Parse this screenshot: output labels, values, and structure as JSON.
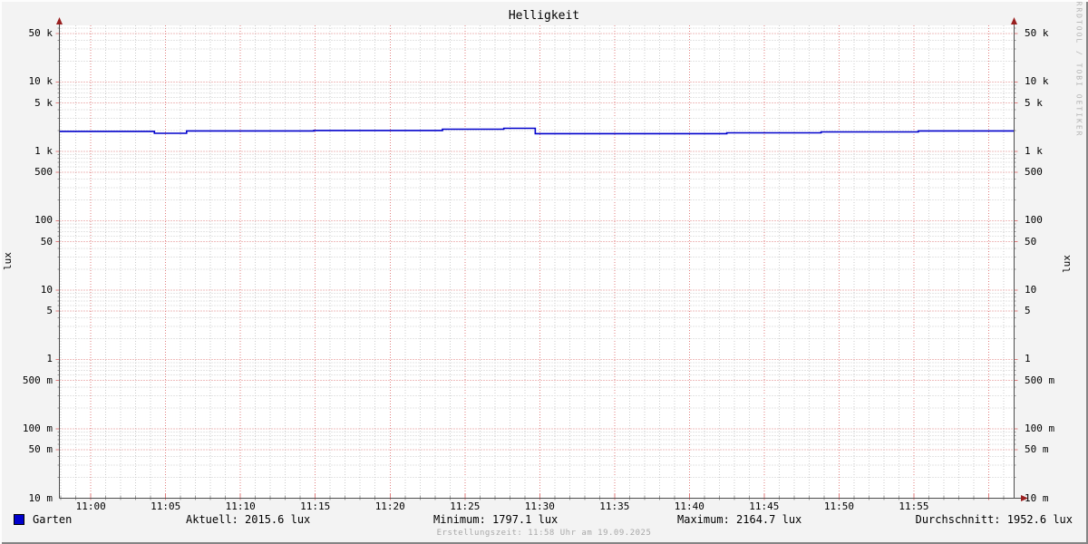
{
  "title": "Helligkeit",
  "watermark": "RRDTOOL / TOBI OETIKER",
  "footer": {
    "created": "Erstellungszeit: 11:58 Uhr am 19.09.2025"
  },
  "legend": {
    "series_label": "Garten",
    "stats": [
      {
        "key": "aktuell",
        "label": "Aktuell: 2015.6 lux"
      },
      {
        "key": "minimum",
        "label": "Minimum: 1797.1 lux"
      },
      {
        "key": "maximum",
        "label": "Maximum: 2164.7 lux"
      },
      {
        "key": "durchschnitt",
        "label": "Durchschnitt: 1952.6 lux"
      }
    ]
  },
  "colors": {
    "background": "#f3f3f3",
    "canvas": "#ffffff",
    "grid_major": "#e07d7d",
    "grid_minor": "#cbcbcb",
    "minor_tick": "#9a9a9a",
    "axis": "#4d4d4d",
    "arrow": "#991f1f",
    "series": "#0000cc",
    "text": "#000000",
    "muted": "#a8a8a8"
  },
  "chart_data": {
    "type": "line",
    "title": "Helligkeit",
    "ylabel": "lux",
    "ylabel_right": "lux",
    "yscale": "log",
    "ylim": [
      0.01,
      65600
    ],
    "xlim_minutes": [
      -2.1,
      61.7
    ],
    "x_minor_step": 1,
    "x_major_step": 5,
    "x_ticks": [
      {
        "label": "11:00",
        "t": 0
      },
      {
        "label": "11:05",
        "t": 5
      },
      {
        "label": "11:10",
        "t": 10
      },
      {
        "label": "11:15",
        "t": 15
      },
      {
        "label": "11:20",
        "t": 20
      },
      {
        "label": "11:25",
        "t": 25
      },
      {
        "label": "11:30",
        "t": 30
      },
      {
        "label": "11:35",
        "t": 35
      },
      {
        "label": "11:40",
        "t": 40
      },
      {
        "label": "11:45",
        "t": 45
      },
      {
        "label": "11:50",
        "t": 50
      },
      {
        "label": "11:55",
        "t": 55
      }
    ],
    "y_ticks": [
      {
        "label": "50 k",
        "v": 50000
      },
      {
        "label": "10 k",
        "v": 10000
      },
      {
        "label": "5 k",
        "v": 5000
      },
      {
        "label": "1 k",
        "v": 1000
      },
      {
        "label": "500",
        "v": 500
      },
      {
        "label": "100",
        "v": 100
      },
      {
        "label": "50",
        "v": 50
      },
      {
        "label": "10",
        "v": 10
      },
      {
        "label": "5",
        "v": 5
      },
      {
        "label": "1",
        "v": 1
      },
      {
        "label": "500 m",
        "v": 0.5
      },
      {
        "label": "100 m",
        "v": 0.1
      },
      {
        "label": "50 m",
        "v": 0.05
      },
      {
        "label": "10 m",
        "v": 0.01
      }
    ],
    "series": [
      {
        "name": "Garten",
        "color": "#0000cc",
        "unit": "lux",
        "segments": [
          [
            -2.1,
            4.25,
            1940
          ],
          [
            4.25,
            6.4,
            1826
          ],
          [
            6.4,
            14.9,
            1969
          ],
          [
            14.9,
            23.5,
            1999
          ],
          [
            23.5,
            27.6,
            2091
          ],
          [
            27.6,
            29.7,
            2154
          ],
          [
            29.7,
            42.5,
            1799
          ],
          [
            42.5,
            48.8,
            1853
          ],
          [
            48.8,
            55.3,
            1910
          ],
          [
            55.3,
            61.7,
            1969
          ]
        ]
      }
    ],
    "stats": {
      "aktuell": 2015.6,
      "minimum": 1797.1,
      "maximum": 2164.7,
      "durchschnitt": 1952.6
    }
  }
}
